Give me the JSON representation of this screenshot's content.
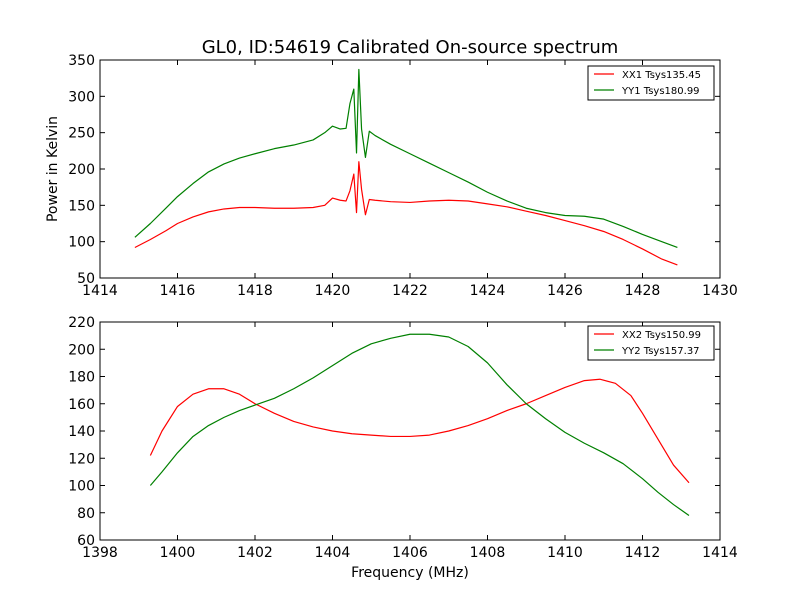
{
  "chart_data": [
    {
      "type": "line",
      "title": "GL0, ID:54619 Calibrated On-source spectrum",
      "xlabel": "",
      "ylabel": "Power in Kelvin",
      "xlim": [
        1414,
        1430
      ],
      "ylim": [
        50,
        350
      ],
      "xticks": [
        1414,
        1416,
        1418,
        1420,
        1422,
        1424,
        1426,
        1428,
        1430
      ],
      "yticks": [
        50,
        100,
        150,
        200,
        250,
        300,
        350
      ],
      "grid": false,
      "legend": "top-right",
      "series": [
        {
          "name": "XX1 Tsys135.45",
          "color": "#ff0000",
          "x": [
            1414.9,
            1415.3,
            1415.7,
            1416.0,
            1416.4,
            1416.8,
            1417.2,
            1417.6,
            1418.0,
            1418.5,
            1419.0,
            1419.5,
            1419.8,
            1420.0,
            1420.2,
            1420.35,
            1420.45,
            1420.55,
            1420.62,
            1420.68,
            1420.75,
            1420.85,
            1420.95,
            1421.1,
            1421.5,
            1422.0,
            1422.5,
            1423.0,
            1423.5,
            1424.0,
            1424.5,
            1425.0,
            1425.5,
            1426.0,
            1426.5,
            1427.0,
            1427.5,
            1428.0,
            1428.5,
            1428.9
          ],
          "y": [
            92,
            103,
            115,
            125,
            134,
            141,
            145,
            147,
            147,
            146,
            146,
            147,
            150,
            160,
            157,
            156,
            170,
            193,
            140,
            210,
            172,
            137,
            158,
            157,
            155,
            154,
            156,
            157,
            156,
            152,
            148,
            142,
            136,
            129,
            122,
            114,
            103,
            90,
            76,
            68
          ]
        },
        {
          "name": "YY1 Tsys180.99",
          "color": "#008000",
          "x": [
            1414.9,
            1415.3,
            1415.7,
            1416.0,
            1416.4,
            1416.8,
            1417.2,
            1417.6,
            1418.0,
            1418.5,
            1419.0,
            1419.5,
            1419.8,
            1420.0,
            1420.2,
            1420.35,
            1420.45,
            1420.55,
            1420.62,
            1420.68,
            1420.75,
            1420.85,
            1420.95,
            1421.1,
            1421.5,
            1422.0,
            1422.5,
            1423.0,
            1423.5,
            1424.0,
            1424.5,
            1425.0,
            1425.5,
            1426.0,
            1426.5,
            1427.0,
            1427.5,
            1428.0,
            1428.5,
            1428.9
          ],
          "y": [
            106,
            125,
            146,
            162,
            180,
            196,
            207,
            215,
            221,
            228,
            233,
            240,
            250,
            259,
            255,
            256,
            290,
            310,
            222,
            337,
            255,
            216,
            252,
            246,
            234,
            221,
            208,
            195,
            182,
            168,
            156,
            146,
            140,
            136,
            135,
            131,
            121,
            110,
            100,
            92
          ]
        }
      ]
    },
    {
      "type": "line",
      "title": "",
      "xlabel": "Frequency (MHz)",
      "ylabel": "",
      "xlim": [
        1398,
        1414
      ],
      "ylim": [
        60,
        220
      ],
      "xticks": [
        1398,
        1400,
        1402,
        1404,
        1406,
        1408,
        1410,
        1412,
        1414
      ],
      "yticks": [
        60,
        80,
        100,
        120,
        140,
        160,
        180,
        200,
        220
      ],
      "grid": false,
      "legend": "top-right",
      "series": [
        {
          "name": "XX2 Tsys150.99",
          "color": "#ff0000",
          "x": [
            1399.3,
            1399.6,
            1400.0,
            1400.4,
            1400.8,
            1401.2,
            1401.6,
            1402.0,
            1402.5,
            1403.0,
            1403.5,
            1404.0,
            1404.5,
            1405.0,
            1405.5,
            1406.0,
            1406.5,
            1407.0,
            1407.5,
            1408.0,
            1408.5,
            1409.0,
            1409.5,
            1410.0,
            1410.5,
            1410.9,
            1411.3,
            1411.7,
            1412.0,
            1412.4,
            1412.8,
            1413.2
          ],
          "y": [
            122,
            140,
            158,
            167,
            171,
            171,
            167,
            160,
            153,
            147,
            143,
            140,
            138,
            137,
            136,
            136,
            137,
            140,
            144,
            149,
            155,
            160,
            166,
            172,
            177,
            178,
            175,
            166,
            153,
            134,
            115,
            102
          ]
        },
        {
          "name": "YY2 Tsys157.37",
          "color": "#008000",
          "x": [
            1399.3,
            1399.6,
            1400.0,
            1400.4,
            1400.8,
            1401.2,
            1401.6,
            1402.0,
            1402.5,
            1403.0,
            1403.5,
            1404.0,
            1404.5,
            1405.0,
            1405.5,
            1406.0,
            1406.5,
            1407.0,
            1407.5,
            1408.0,
            1408.5,
            1409.0,
            1409.5,
            1410.0,
            1410.5,
            1411.0,
            1411.5,
            1412.0,
            1412.4,
            1412.8,
            1413.2
          ],
          "y": [
            100,
            110,
            124,
            136,
            144,
            150,
            155,
            159,
            164,
            171,
            179,
            188,
            197,
            204,
            208,
            211,
            211,
            209,
            202,
            190,
            174,
            160,
            149,
            139,
            131,
            124,
            116,
            105,
            95,
            86,
            78
          ]
        }
      ]
    }
  ]
}
